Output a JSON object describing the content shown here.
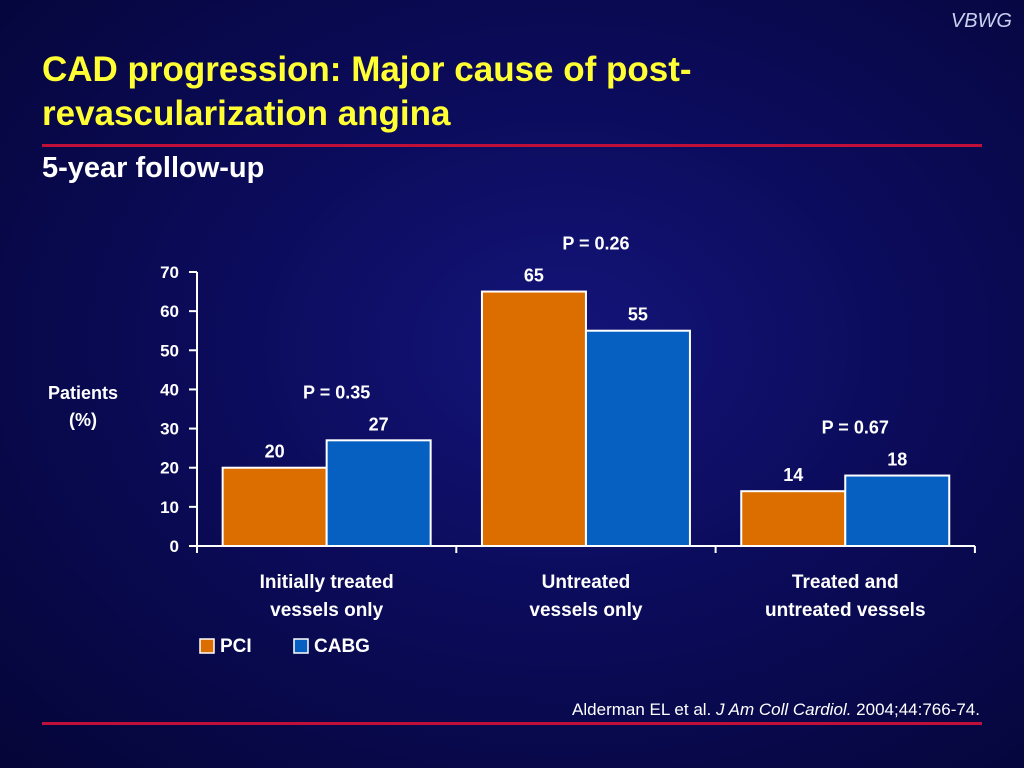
{
  "brand": "VBWG",
  "title": "CAD progression: Major cause of post-revascularization angina",
  "subtitle": "5-year follow-up",
  "citation": {
    "authors": "Alderman EL et al.",
    "journal": "J Am Coll Cardiol.",
    "details": "2004;44:766-74."
  },
  "colors": {
    "pci": "#dc6e00",
    "cabg": "#0660c2",
    "title": "#ffff33",
    "rule": "#c0103a"
  },
  "chart_data": {
    "type": "bar",
    "categories": [
      [
        "Initially treated",
        "vessels only"
      ],
      [
        "Untreated",
        "vessels only"
      ],
      [
        "Treated and",
        "untreated vessels"
      ]
    ],
    "series": [
      {
        "name": "PCI",
        "values": [
          20,
          65,
          14
        ]
      },
      {
        "name": "CABG",
        "values": [
          27,
          55,
          18
        ]
      }
    ],
    "ylabel": [
      "Patients",
      "(%)"
    ],
    "ylim": [
      0,
      70
    ],
    "yticks": [
      0,
      10,
      20,
      30,
      40,
      50,
      60,
      70
    ],
    "annotations": [
      "P = 0.35",
      "P = 0.26",
      "P = 0.67"
    ],
    "legend_position": "bottom-left",
    "grid": false
  }
}
